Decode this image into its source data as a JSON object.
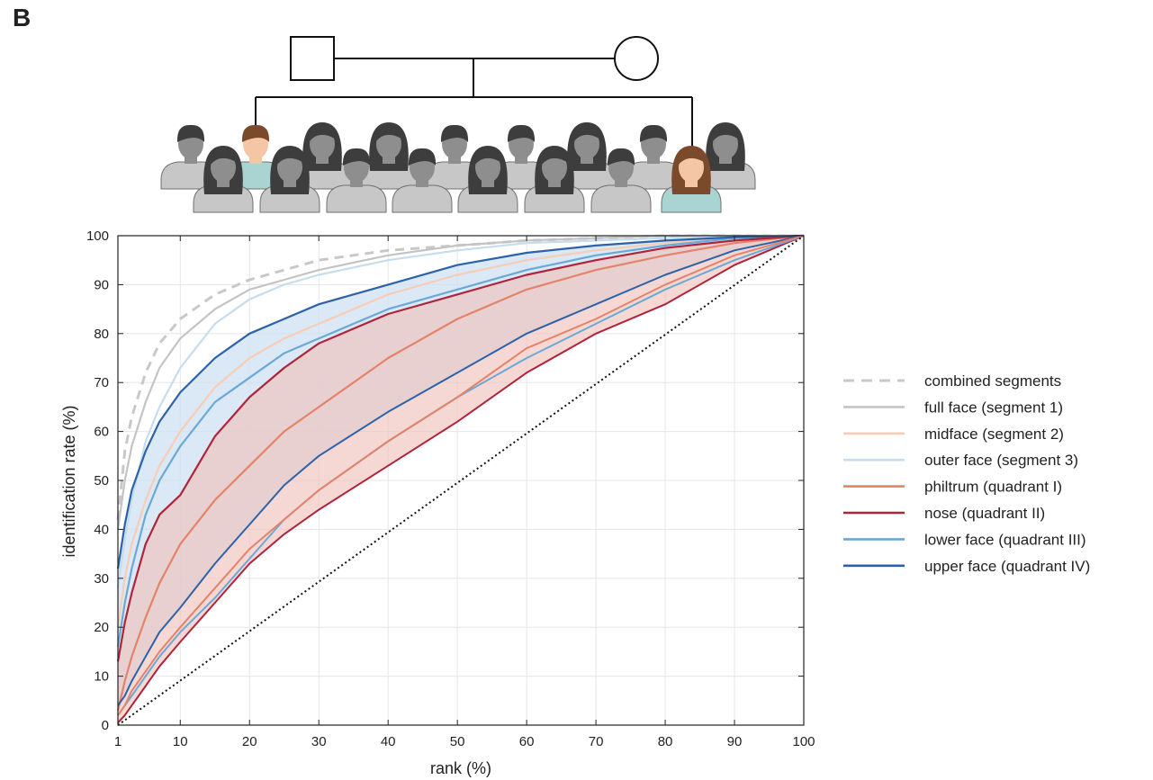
{
  "panel_label": "B",
  "colors": {
    "combined": "#c8c8c8",
    "full_face": "#c4c4c4",
    "midface": "#f7cdb5",
    "outer_face": "#c6ddee",
    "philtrum": "#e4826a",
    "nose": "#b0243a",
    "lower_face": "#6aa9d6",
    "upper_face": "#2c62a8",
    "band_blue": "#cfe0f1",
    "band_red": "#efc3bd",
    "person_grey": "#8e8e8e",
    "hair": "#3d3d3d",
    "highlight_skin": "#f5c6a5",
    "highlight_shirt": "#a9d4d1",
    "highlight_hair_brown": "#7b4a2c"
  },
  "icons": {
    "father": "square-male-icon",
    "mother": "circle-female-icon",
    "people": "person-silhouette-icon"
  },
  "chart_data": {
    "type": "line",
    "xlabel": "rank (%)",
    "ylabel": "identification rate (%)",
    "xlim": [
      1,
      100
    ],
    "ylim": [
      0,
      100
    ],
    "xticks": [
      1,
      10,
      20,
      30,
      40,
      50,
      60,
      70,
      80,
      90,
      100
    ],
    "yticks": [
      0,
      10,
      20,
      30,
      40,
      50,
      60,
      70,
      80,
      90,
      100
    ],
    "grid": true,
    "legend_position": "right",
    "x": [
      1,
      2,
      3,
      5,
      7,
      10,
      15,
      20,
      25,
      30,
      40,
      50,
      60,
      70,
      80,
      90,
      100
    ],
    "series": [
      {
        "name": "combined segments",
        "style": "dashed",
        "color_key": "combined",
        "values": [
          42,
          56,
          63,
          72,
          78,
          83,
          88,
          91,
          93,
          95,
          97,
          98,
          99,
          99.5,
          100,
          100,
          100
        ]
      },
      {
        "name": "full face (segment 1)",
        "style": "solid",
        "color_key": "full_face",
        "values": [
          40,
          50,
          57,
          66,
          73,
          79,
          85,
          89,
          91,
          93,
          96,
          98,
          99,
          99.5,
          100,
          100,
          100
        ]
      },
      {
        "name": "midface (segment 2)",
        "style": "solid",
        "color_key": "midface",
        "values": [
          20,
          30,
          37,
          46,
          53,
          60,
          69,
          75,
          79,
          82,
          88,
          92,
          95,
          97,
          98.5,
          99.5,
          100
        ]
      },
      {
        "name": "outer face (segment 3)",
        "style": "solid",
        "color_key": "outer_face",
        "values": [
          28,
          38,
          46,
          58,
          65,
          73,
          82,
          87,
          90,
          92,
          95,
          97,
          98.5,
          99,
          99.5,
          100,
          100
        ]
      },
      {
        "name": "philtrum (quadrant I)",
        "style": "solid",
        "color_key": "philtrum",
        "values": [
          3,
          9,
          14,
          22,
          29,
          37,
          46,
          53,
          60,
          65,
          75,
          83,
          89,
          93,
          96,
          98.5,
          100
        ]
      },
      {
        "name": "nose (quadrant II)",
        "style": "solid",
        "color_key": "nose",
        "values": [
          13,
          21,
          27,
          37,
          43,
          47,
          59,
          67,
          73,
          78,
          84,
          88,
          92,
          95,
          97.5,
          99,
          100
        ]
      },
      {
        "name": "lower face (quadrant III)",
        "style": "solid",
        "color_key": "lower_face",
        "values": [
          16,
          25,
          32,
          43,
          50,
          57,
          66,
          71,
          76,
          79,
          85,
          89,
          93,
          96,
          98,
          99.5,
          100
        ]
      },
      {
        "name": "upper face (quadrant IV)",
        "style": "solid",
        "color_key": "upper_face",
        "values": [
          32,
          41,
          48,
          56,
          62,
          68,
          75,
          80,
          83,
          86,
          90,
          94,
          96.5,
          98,
          99,
          99.7,
          100
        ]
      }
    ],
    "lower_bounds": {
      "x": [
        1,
        2,
        3,
        5,
        7,
        10,
        15,
        20,
        25,
        30,
        40,
        50,
        60,
        70,
        80,
        90,
        100
      ],
      "nose": [
        0.5,
        2,
        4,
        8,
        12,
        17,
        25,
        33,
        39,
        44,
        53,
        62,
        72,
        80,
        86,
        94,
        100
      ],
      "lower_face": [
        2,
        4,
        6,
        10,
        14,
        19,
        26,
        34,
        42,
        48,
        58,
        67,
        75,
        82,
        89,
        95,
        100
      ],
      "upper_face": [
        4,
        6,
        9,
        14,
        19,
        24,
        33,
        41,
        49,
        55,
        64,
        72,
        80,
        86,
        92,
        97,
        100
      ],
      "philtrum": [
        2,
        4,
        7,
        11,
        15,
        20,
        28,
        36,
        42,
        48,
        58,
        67,
        77,
        83,
        90,
        96,
        100
      ]
    },
    "reference_line": {
      "style": "dotted",
      "values": [
        [
          1,
          0
        ],
        [
          100,
          100
        ]
      ]
    }
  }
}
